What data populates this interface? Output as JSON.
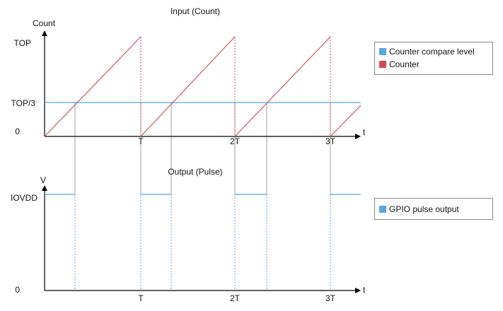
{
  "colors": {
    "compare": "#5aa5dd",
    "counter": "#cc4a5e",
    "gpio": "#5aa5dd",
    "guide": "#a0a0a0",
    "axis": "#000000"
  },
  "top_panel": {
    "title": "Input (Count)",
    "y_axis_label": "Count",
    "x_axis_label": "t",
    "y_ticks": [
      "TOP",
      "TOP/3",
      "0"
    ],
    "x_ticks": [
      "T",
      "2T",
      "3T"
    ],
    "legend": [
      "Counter compare level",
      "Counter"
    ]
  },
  "bottom_panel": {
    "title": "Output (Pulse)",
    "y_axis_label": "V",
    "x_axis_label": "t",
    "y_ticks": [
      "IOVDD",
      "0"
    ],
    "x_ticks": [
      "T",
      "2T",
      "3T"
    ],
    "legend": [
      "GPIO pulse output"
    ]
  }
}
